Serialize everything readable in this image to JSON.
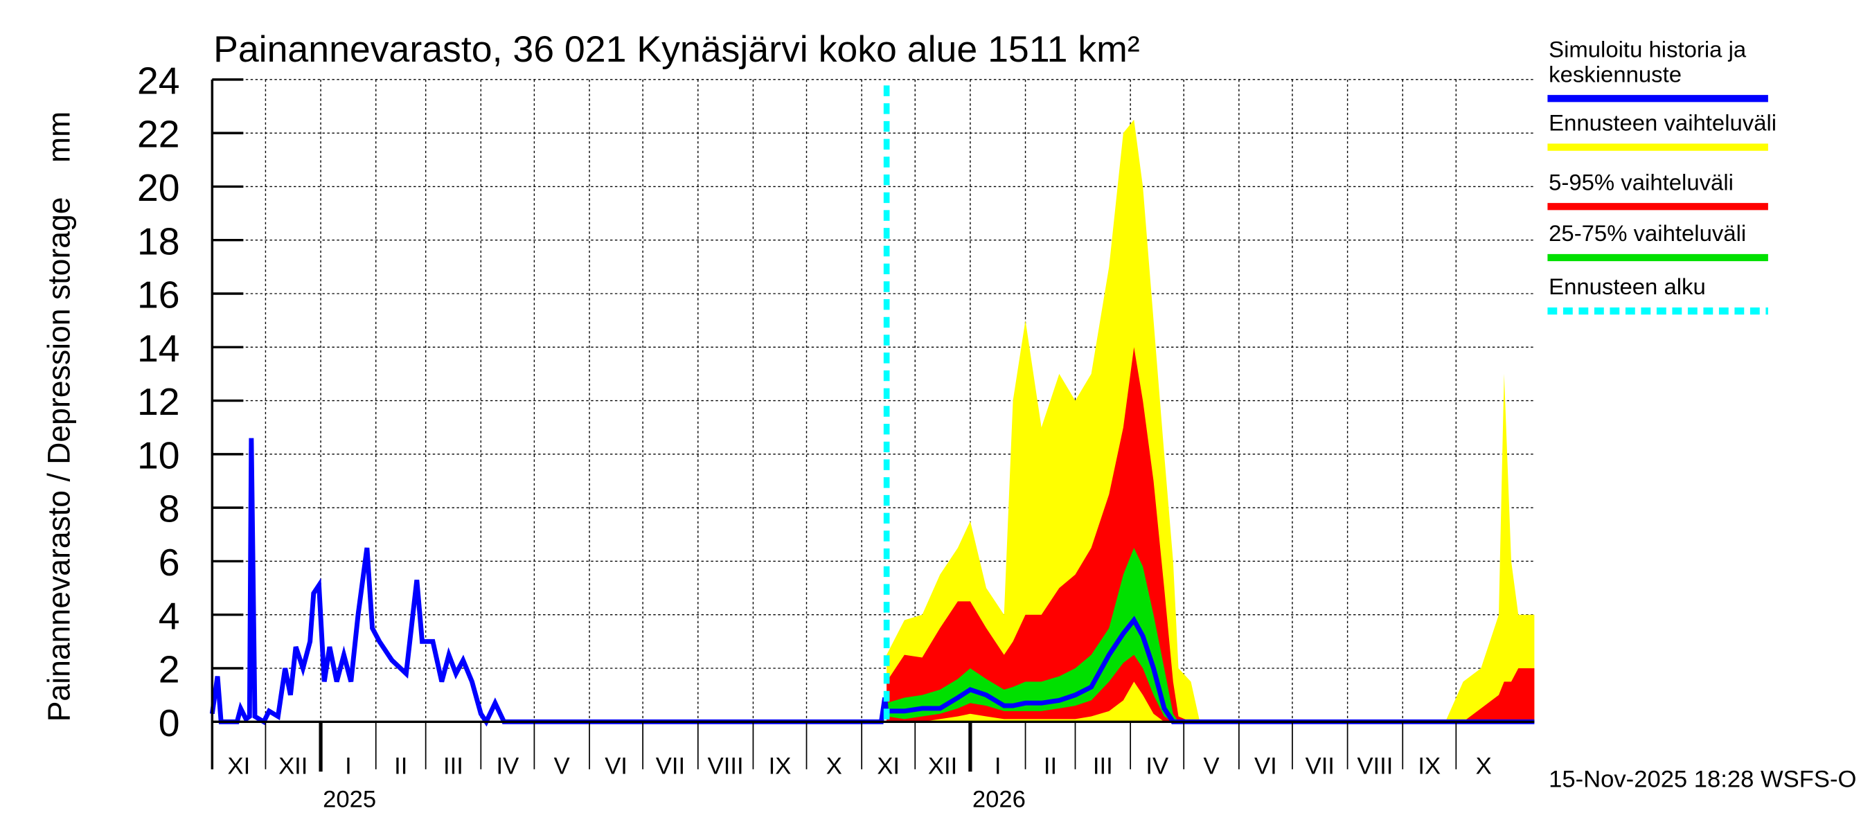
{
  "chart_data": {
    "type": "area",
    "title": "Painannevarasto, 36 021 Kynäsjärvi koko alue 1511 km²",
    "ylabel": "Painannevarasto / Depression storage    mm",
    "ylim": [
      0,
      24
    ],
    "yticks": [
      "0",
      "2",
      "4",
      "6",
      "8",
      "10",
      "12",
      "14",
      "16",
      "18",
      "20",
      "22",
      "24"
    ],
    "xlim": [
      "2024-11-01",
      "2026-11-14"
    ],
    "month_labels": [
      "XI",
      "XII",
      "I",
      "II",
      "III",
      "IV",
      "V",
      "VI",
      "VII",
      "VIII",
      "IX",
      "X",
      "XI",
      "XII",
      "I",
      "II",
      "III",
      "IV",
      "V",
      "VI",
      "VII",
      "VIII",
      "IX",
      "X"
    ],
    "year_labels": [
      {
        "label": "2025",
        "date": "2025-01-01"
      },
      {
        "label": "2026",
        "date": "2026-01-01"
      }
    ],
    "grid": true,
    "legend_position": "right",
    "forecast_start": "2025-11-15",
    "timestamp": "15-Nov-2025 18:28 WSFS-O",
    "colors": {
      "history": "#0000ff",
      "range": "#ffff00",
      "p5_95": "#ff0000",
      "p25_75": "#00e000",
      "forecast_start": "#00ffff"
    },
    "legend": [
      {
        "label1": "Simuloitu historia ja",
        "label2": "keskiennuste",
        "color": "#0000ff",
        "style": "solid"
      },
      {
        "label1": "Ennusteen vaihteluväli",
        "label2": "",
        "color": "#ffff00",
        "style": "solid"
      },
      {
        "label1": "5-95% vaihteluväli",
        "label2": "",
        "color": "#ff0000",
        "style": "solid"
      },
      {
        "label1": "25-75% vaihteluväli",
        "label2": "",
        "color": "#00e000",
        "style": "solid"
      },
      {
        "label1": "Ennusteen alku",
        "label2": "",
        "color": "#00ffff",
        "style": "dashed"
      }
    ],
    "history": [
      [
        "2024-11-01",
        0.3
      ],
      [
        "2024-11-04",
        1.7
      ],
      [
        "2024-11-06",
        0
      ],
      [
        "2024-11-15",
        0
      ],
      [
        "2024-11-17",
        0.5
      ],
      [
        "2024-11-20",
        0.1
      ],
      [
        "2024-11-22",
        0.2
      ],
      [
        "2024-11-23",
        10.6
      ],
      [
        "2024-11-25",
        0.2
      ],
      [
        "2024-11-30",
        0
      ],
      [
        "2024-12-03",
        0.4
      ],
      [
        "2024-12-08",
        0.2
      ],
      [
        "2024-12-12",
        2
      ],
      [
        "2024-12-15",
        1
      ],
      [
        "2024-12-18",
        2.8
      ],
      [
        "2024-12-22",
        2
      ],
      [
        "2024-12-26",
        3
      ],
      [
        "2024-12-28",
        4.8
      ],
      [
        "2024-12-31",
        5.1
      ],
      [
        "2025-01-03",
        1.5
      ],
      [
        "2025-01-06",
        2.8
      ],
      [
        "2025-01-10",
        1.5
      ],
      [
        "2025-01-14",
        2.5
      ],
      [
        "2025-01-18",
        1.5
      ],
      [
        "2025-01-22",
        4
      ],
      [
        "2025-01-27",
        6.5
      ],
      [
        "2025-01-30",
        3.5
      ],
      [
        "2025-02-03",
        3
      ],
      [
        "2025-02-10",
        2.3
      ],
      [
        "2025-02-18",
        1.8
      ],
      [
        "2025-02-24",
        5.3
      ],
      [
        "2025-02-27",
        3
      ],
      [
        "2025-03-05",
        3
      ],
      [
        "2025-03-10",
        1.5
      ],
      [
        "2025-03-14",
        2.5
      ],
      [
        "2025-03-18",
        1.8
      ],
      [
        "2025-03-22",
        2.3
      ],
      [
        "2025-03-27",
        1.5
      ],
      [
        "2025-04-01",
        0.3
      ],
      [
        "2025-04-04",
        0
      ],
      [
        "2025-04-09",
        0.7
      ],
      [
        "2025-04-14",
        0
      ],
      [
        "2025-11-12",
        0
      ],
      [
        "2025-11-14",
        0.9
      ],
      [
        "2025-11-15",
        0.3
      ]
    ],
    "forecast_columns": [
      "date",
      "min",
      "p5",
      "p25",
      "median",
      "p75",
      "p95",
      "max"
    ],
    "forecast": [
      [
        "2025-11-15",
        0,
        0,
        0.2,
        0.4,
        0.7,
        1.5,
        2.5
      ],
      [
        "2025-11-25",
        0,
        0,
        0.1,
        0.4,
        0.9,
        2.5,
        3.8
      ],
      [
        "2025-12-05",
        0,
        0,
        0.2,
        0.5,
        1.0,
        2.4,
        4
      ],
      [
        "2025-12-15",
        0,
        0.1,
        0.3,
        0.5,
        1.2,
        3.5,
        5.5
      ],
      [
        "2025-12-25",
        0,
        0.2,
        0.5,
        0.9,
        1.6,
        4.5,
        6.5
      ],
      [
        "2026-01-01",
        0,
        0.3,
        0.7,
        1.2,
        2,
        4.5,
        7.5
      ],
      [
        "2026-01-10",
        0,
        0.2,
        0.6,
        1.0,
        1.6,
        3.5,
        5
      ],
      [
        "2026-01-20",
        0,
        0.1,
        0.4,
        0.6,
        1.2,
        2.5,
        4
      ],
      [
        "2026-01-25",
        0,
        0.1,
        0.4,
        0.6,
        1.3,
        3,
        12
      ],
      [
        "2026-02-01",
        0,
        0.1,
        0.4,
        0.7,
        1.5,
        4,
        15
      ],
      [
        "2026-02-10",
        0,
        0.1,
        0.4,
        0.7,
        1.5,
        4,
        11
      ],
      [
        "2026-02-20",
        0,
        0.1,
        0.5,
        0.8,
        1.7,
        5,
        13
      ],
      [
        "2026-03-01",
        0,
        0.1,
        0.6,
        1,
        2,
        5.5,
        12
      ],
      [
        "2026-03-10",
        0,
        0.2,
        0.8,
        1.3,
        2.5,
        6.5,
        13
      ],
      [
        "2026-03-20",
        0,
        0.4,
        1.5,
        2.5,
        3.5,
        8.5,
        17
      ],
      [
        "2026-03-28",
        0,
        0.8,
        2.2,
        3.3,
        5.5,
        11,
        22
      ],
      [
        "2026-04-03",
        0,
        1.5,
        2.5,
        3.8,
        6.5,
        14,
        22.5
      ],
      [
        "2026-04-08",
        0,
        1,
        2,
        3.2,
        5.8,
        12,
        20
      ],
      [
        "2026-04-14",
        0,
        0.3,
        1,
        2,
        4,
        9,
        15
      ],
      [
        "2026-04-20",
        0,
        0,
        0.2,
        0.5,
        2,
        5,
        10
      ],
      [
        "2026-04-25",
        0,
        0,
        0,
        0,
        0.3,
        1.5,
        6
      ],
      [
        "2026-04-28",
        0,
        0,
        0,
        0,
        0,
        0.2,
        2
      ],
      [
        "2026-05-05",
        0,
        0,
        0,
        0,
        0,
        0,
        1.5
      ],
      [
        "2026-05-10",
        0,
        0,
        0,
        0,
        0,
        0,
        0
      ],
      [
        "2026-09-25",
        0,
        0,
        0,
        0,
        0,
        0,
        0
      ],
      [
        "2026-10-05",
        0,
        0,
        0,
        0,
        0,
        0,
        1.5
      ],
      [
        "2026-10-15",
        0,
        0,
        0,
        0,
        0,
        0.5,
        2
      ],
      [
        "2026-10-25",
        0,
        0,
        0,
        0,
        0,
        1,
        4
      ],
      [
        "2026-10-28",
        0,
        0,
        0,
        0,
        0,
        1.5,
        13
      ],
      [
        "2026-11-01",
        0,
        0,
        0,
        0,
        0,
        1.5,
        6
      ],
      [
        "2026-11-05",
        0,
        0,
        0,
        0,
        0,
        2,
        4
      ],
      [
        "2026-11-14",
        0,
        0,
        0,
        0,
        0,
        2,
        4
      ]
    ]
  }
}
